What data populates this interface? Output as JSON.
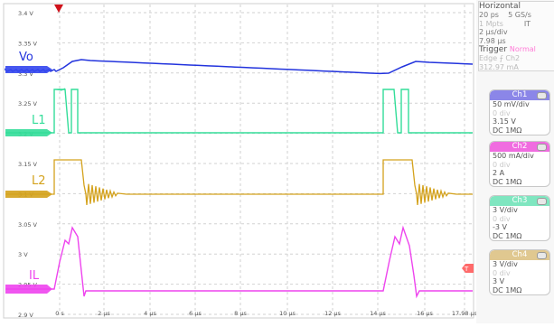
{
  "y_ticks": [
    "3.4 V",
    "3.35 V",
    "3.3 V",
    "3.25 V",
    "3.2 V",
    "3.15 V",
    "3.1 V",
    "3.05 V",
    "3 V",
    "2.95 V",
    "2.9 V"
  ],
  "x_ticks": [
    "0 s",
    "2 µs",
    "4 µs",
    "6 µs",
    "8 µs",
    "10 µs",
    "12 µs",
    "14 µs",
    "16 µs",
    "17.98 µs"
  ],
  "traces": [
    {
      "label": "Vo",
      "color": "#2233dd"
    },
    {
      "label": "L1",
      "color": "#33dd99"
    },
    {
      "label": "L2",
      "color": "#d4a21c"
    },
    {
      "label": "IL",
      "color": "#ee44ee"
    }
  ],
  "trigger_level_marker": "T",
  "horizontal": {
    "title": "Horizontal",
    "rows": [
      {
        "left": "20 ps",
        "right": "5 GS/s"
      },
      {
        "left": "1 Mpts",
        "right": "IT"
      },
      {
        "left": "2 µs/div",
        "right": ""
      },
      {
        "left": "7.98 µs",
        "right": ""
      }
    ],
    "trigger": {
      "title": "Trigger",
      "mode": "Normal",
      "row1": "Edge ⨍ Ch2",
      "row2": "312.97 mA"
    }
  },
  "channels": [
    {
      "name": "Ch1",
      "color": "#8b86e8",
      "lines": [
        "50 mV/div",
        "0 div",
        "3.15 V",
        "DC 1MΩ"
      ]
    },
    {
      "name": "Ch2",
      "color": "#f06ce0",
      "lines": [
        "500 mA/div",
        "0 div",
        "2 A",
        "DC 1MΩ"
      ]
    },
    {
      "name": "Ch3",
      "color": "#7fe6c0",
      "lines": [
        "3 V/div",
        "0 div",
        "-3 V",
        "DC 1MΩ"
      ]
    },
    {
      "name": "Ch4",
      "color": "#e0c890",
      "lines": [
        "3 V/div",
        "0 div",
        "3 V",
        "DC 1MΩ"
      ]
    }
  ]
}
